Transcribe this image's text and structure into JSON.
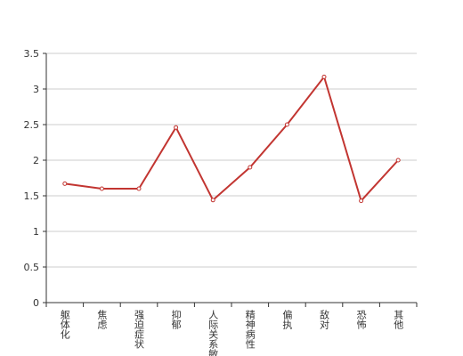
{
  "chart_data": {
    "type": "line",
    "categories": [
      "躯体化",
      "焦虑",
      "强迫症状",
      "抑郁",
      "人际关系敏感",
      "精神病性",
      "偏执",
      "敌对",
      "恐怖",
      "其他"
    ],
    "series": [
      {
        "color": "#c23531",
        "values": [
          1.67,
          1.6,
          1.6,
          2.46,
          1.44,
          1.9,
          2.5,
          3.17,
          1.43,
          2.0
        ]
      }
    ],
    "ylim": [
      0,
      3.5
    ],
    "yticks": [
      0,
      0.5,
      1,
      1.5,
      2,
      2.5,
      3,
      3.5
    ],
    "grid": true
  }
}
